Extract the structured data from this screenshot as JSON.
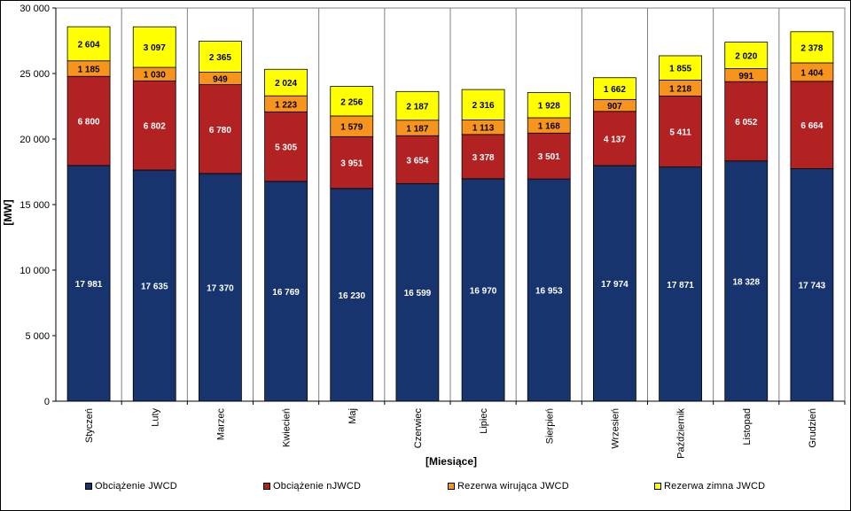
{
  "chart_data": {
    "type": "bar",
    "stacked": true,
    "title": "",
    "xlabel": "[Miesiące]",
    "ylabel": "[MW]",
    "ylim": [
      0,
      30000
    ],
    "yticks": [
      "0",
      "5 000",
      "10 000",
      "15 000",
      "20 000",
      "25 000",
      "30 000"
    ],
    "ytick_values": [
      0,
      5000,
      10000,
      15000,
      20000,
      25000,
      30000
    ],
    "grid": "vertical-category-lines",
    "legend_position": "bottom",
    "categories": [
      "Styczeń",
      "Luty",
      "Marzec",
      "Kwiecień",
      "Maj",
      "Czerwiec",
      "Lipiec",
      "Sierpień",
      "Wrzesień",
      "Październik",
      "Listopad",
      "Grudzień"
    ],
    "series": [
      {
        "name": "Obciążenie JWCD",
        "color": "#17346E",
        "label_color": "#FFFFFF",
        "values": [
          17981,
          17635,
          17370,
          16769,
          16230,
          16599,
          16970,
          16953,
          17974,
          17871,
          18328,
          17743
        ],
        "labels": [
          "17 981",
          "17 635",
          "17 370",
          "16 769",
          "16 230",
          "16 599",
          "16 970",
          "16 953",
          "17 974",
          "17 871",
          "18 328",
          "17 743"
        ]
      },
      {
        "name": "Obciążenie nJWCD",
        "color": "#B22222",
        "label_color": "#FFFFFF",
        "values": [
          6800,
          6802,
          6780,
          5305,
          3951,
          3654,
          3378,
          3501,
          4137,
          5411,
          6052,
          6664
        ],
        "labels": [
          "6 800",
          "6 802",
          "6 780",
          "5 305",
          "3 951",
          "3 654",
          "3 378",
          "3 501",
          "4 137",
          "5 411",
          "6 052",
          "6 664"
        ]
      },
      {
        "name": "Rezerwa wirująca JWCD",
        "color": "#F7941D",
        "label_color": "#000000",
        "values": [
          1185,
          1030,
          949,
          1223,
          1579,
          1187,
          1113,
          1168,
          907,
          1218,
          991,
          1404
        ],
        "labels": [
          "1 185",
          "1 030",
          "949",
          "1 223",
          "1 579",
          "1 187",
          "1 113",
          "1 168",
          "907",
          "1 218",
          "991",
          "1 404"
        ]
      },
      {
        "name": "Rezerwa zimna JWCD",
        "color": "#FFFF00",
        "label_color": "#000000",
        "values": [
          2604,
          3097,
          2365,
          2024,
          2256,
          2187,
          2316,
          1928,
          1662,
          1855,
          2020,
          2378
        ],
        "labels": [
          "2 604",
          "3 097",
          "2 365",
          "2 024",
          "2 256",
          "2 187",
          "2 316",
          "1 928",
          "1 662",
          "1 855",
          "2 020",
          "2 378"
        ]
      }
    ]
  }
}
